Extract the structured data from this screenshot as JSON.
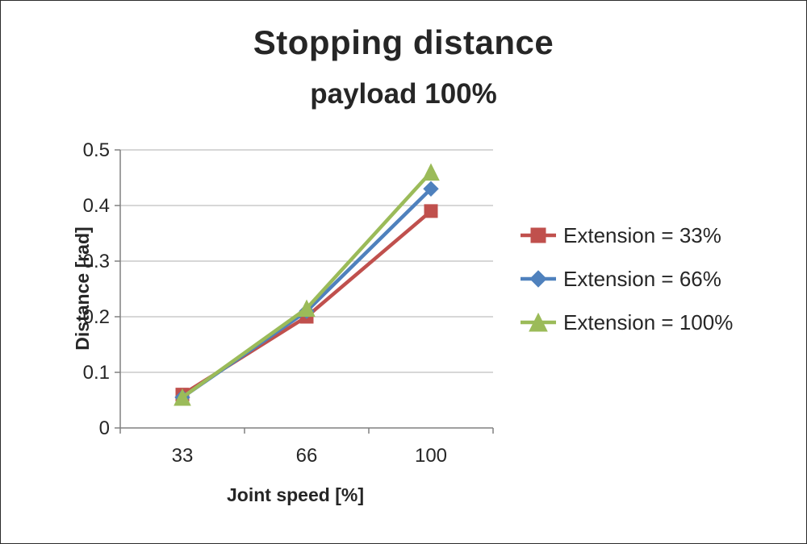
{
  "chart_data": {
    "type": "line",
    "title": "Stopping distance",
    "subtitle": "payload 100%",
    "xlabel": "Joint speed [%]",
    "ylabel": "Distance [rad]",
    "categories": [
      "33",
      "66",
      "100"
    ],
    "series": [
      {
        "name": "Extension = 33%",
        "values": [
          0.06,
          0.2,
          0.39
        ],
        "color": "#c0504d",
        "marker": "square"
      },
      {
        "name": "Extension = 66%",
        "values": [
          0.055,
          0.21,
          0.43
        ],
        "color": "#4f81bd",
        "marker": "diamond"
      },
      {
        "name": "Extension = 100%",
        "values": [
          0.055,
          0.215,
          0.46
        ],
        "color": "#9bbb59",
        "marker": "triangle"
      }
    ],
    "ylim": [
      0,
      0.5
    ],
    "ytick_step": 0.1,
    "ytick_labels": [
      "0",
      "0.1",
      "0.2",
      "0.3",
      "0.4",
      "0.5"
    ],
    "grid": "horizontal",
    "legend_position": "right",
    "colors": {
      "gridline": "#bfbfbf",
      "axis": "#808080",
      "text": "#262626",
      "background": "#ffffff"
    }
  }
}
